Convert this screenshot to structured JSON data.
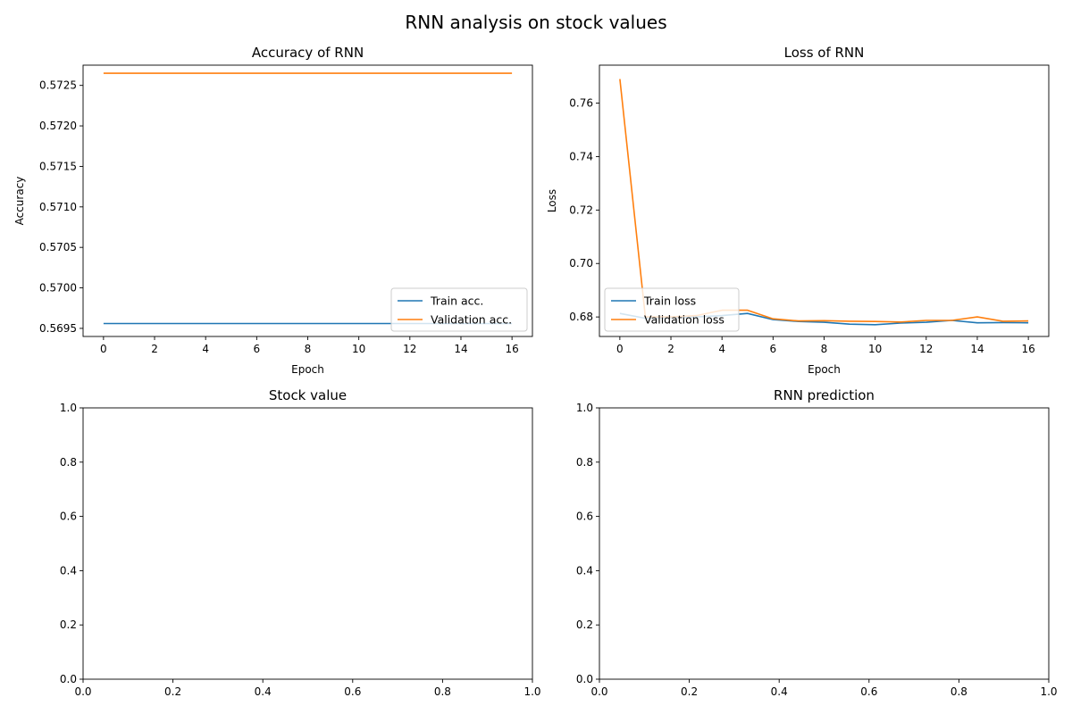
{
  "figure_title": "RNN analysis on stock values",
  "colors": {
    "train": "#1f77b4",
    "validation": "#ff7f0e",
    "axis": "#000000"
  },
  "chart_data": [
    {
      "type": "line",
      "title": "Accuracy of RNN",
      "xlabel": "Epoch",
      "ylabel": "Accuracy",
      "xlim": [
        -0.8,
        16.8
      ],
      "ylim": [
        0.5694,
        0.57275
      ],
      "xticks": [
        0,
        2,
        4,
        6,
        8,
        10,
        12,
        14,
        16
      ],
      "yticks": [
        0.5695,
        0.57,
        0.5705,
        0.571,
        0.5715,
        0.572,
        0.5725
      ],
      "ytick_labels": [
        "0.5695",
        "0.5700",
        "0.5705",
        "0.5710",
        "0.5715",
        "0.5720",
        "0.5725"
      ],
      "legend": "lower right",
      "x": [
        0,
        1,
        2,
        3,
        4,
        5,
        6,
        7,
        8,
        9,
        10,
        11,
        12,
        13,
        14,
        15,
        16
      ],
      "series": [
        {
          "name": "Train acc.",
          "color": "#1f77b4",
          "values": [
            0.56956,
            0.56956,
            0.56956,
            0.56956,
            0.56956,
            0.56956,
            0.56956,
            0.56956,
            0.56956,
            0.56956,
            0.56956,
            0.56956,
            0.56956,
            0.56956,
            0.56956,
            0.56956,
            0.56956
          ]
        },
        {
          "name": "Validation acc.",
          "color": "#ff7f0e",
          "values": [
            0.57265,
            0.57265,
            0.57265,
            0.57265,
            0.57265,
            0.57265,
            0.57265,
            0.57265,
            0.57265,
            0.57265,
            0.57265,
            0.57265,
            0.57265,
            0.57265,
            0.57265,
            0.57265,
            0.57265
          ]
        }
      ]
    },
    {
      "type": "line",
      "title": "Loss of RNN",
      "xlabel": "Epoch",
      "ylabel": "Loss",
      "xlim": [
        -0.8,
        16.8
      ],
      "ylim": [
        0.6727,
        0.7742
      ],
      "xticks": [
        0,
        2,
        4,
        6,
        8,
        10,
        12,
        14,
        16
      ],
      "yticks": [
        0.68,
        0.7,
        0.72,
        0.74,
        0.76
      ],
      "ytick_labels": [
        "0.68",
        "0.70",
        "0.72",
        "0.74",
        "0.76"
      ],
      "legend": "lower left",
      "x": [
        0,
        1,
        2,
        3,
        4,
        5,
        6,
        7,
        8,
        9,
        10,
        11,
        12,
        13,
        14,
        15,
        16
      ],
      "series": [
        {
          "name": "Train loss",
          "color": "#1f77b4",
          "values": [
            0.6813,
            0.6795,
            0.6797,
            0.68,
            0.6805,
            0.6813,
            0.679,
            0.6783,
            0.678,
            0.6773,
            0.6771,
            0.6777,
            0.678,
            0.6787,
            0.6778,
            0.6779,
            0.6778
          ]
        },
        {
          "name": "Validation loss",
          "color": "#ff7f0e",
          "values": [
            0.769,
            0.68,
            0.68,
            0.6805,
            0.6825,
            0.6825,
            0.6793,
            0.6785,
            0.6786,
            0.6784,
            0.6783,
            0.6781,
            0.6787,
            0.6787,
            0.68,
            0.6784,
            0.6785
          ]
        }
      ]
    },
    {
      "type": "line",
      "title": "Stock value",
      "xlabel": "",
      "ylabel": "",
      "xlim": [
        0,
        1
      ],
      "ylim": [
        0,
        1
      ],
      "xticks": [
        0,
        0.2,
        0.4,
        0.6,
        0.8,
        1.0
      ],
      "xtick_labels": [
        "0.0",
        "0.2",
        "0.4",
        "0.6",
        "0.8",
        "1.0"
      ],
      "yticks": [
        0,
        0.2,
        0.4,
        0.6,
        0.8,
        1.0
      ],
      "ytick_labels": [
        "0.0",
        "0.2",
        "0.4",
        "0.6",
        "0.8",
        "1.0"
      ],
      "series": []
    },
    {
      "type": "line",
      "title": "RNN prediction",
      "xlabel": "",
      "ylabel": "",
      "xlim": [
        0,
        1
      ],
      "ylim": [
        0,
        1
      ],
      "xticks": [
        0,
        0.2,
        0.4,
        0.6,
        0.8,
        1.0
      ],
      "xtick_labels": [
        "0.0",
        "0.2",
        "0.4",
        "0.6",
        "0.8",
        "1.0"
      ],
      "yticks": [
        0,
        0.2,
        0.4,
        0.6,
        0.8,
        1.0
      ],
      "ytick_labels": [
        "0.0",
        "0.2",
        "0.4",
        "0.6",
        "0.8",
        "1.0"
      ],
      "series": []
    }
  ]
}
